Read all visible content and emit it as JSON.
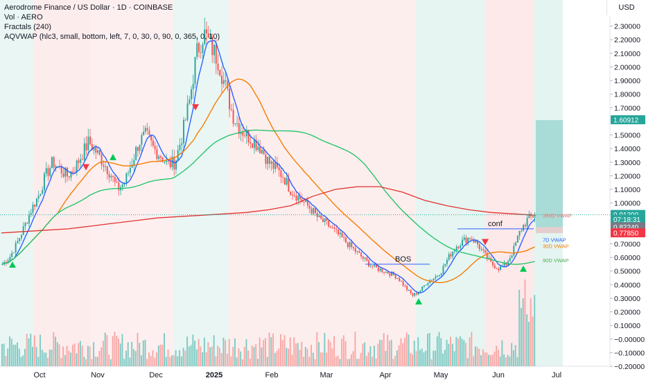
{
  "header": {
    "symbol_line": "Aerodrome Finance / US Dollar · 1D · COINBASE",
    "indicators": [
      "Vol · AERO",
      "Fractals (240)",
      "AQVWAP (hlc3, small, bottom, left, 7, 0, 30, 0, 90, 0, 365, 0, 10)"
    ],
    "currency": "USD"
  },
  "annotations": {
    "bos": "BOS",
    "conf": "conf"
  },
  "price_labels": [
    {
      "text": "1.60912",
      "bg": "#26a69a",
      "fg": "#ffffff",
      "value": 1.60912
    },
    {
      "text": "0.91300",
      "bg": "#26a69a",
      "fg": "#ffffff",
      "value": 0.913
    },
    {
      "text": "07:18:31",
      "bg": "#26a69a",
      "fg": "#ffffff",
      "value": 0.878
    },
    {
      "text": "0.82240",
      "bg": "#787b86",
      "fg": "#ffffff",
      "value": 0.8224
    },
    {
      "text": "0.77850",
      "bg": "#f23645",
      "fg": "#ffffff",
      "value": 0.7785
    }
  ],
  "vwap_labels": [
    {
      "text": "365D VWAP",
      "color": "#e57373",
      "value": 0.91
    },
    {
      "text": "7D VWAP",
      "color": "#2962ff",
      "value": 0.73
    },
    {
      "text": "30D VWAP",
      "color": "#f57c00",
      "value": 0.685
    },
    {
      "text": "90D VWAP",
      "color": "#4caf50",
      "value": 0.58
    }
  ],
  "chart_data": {
    "type": "candlestick",
    "title": "Aerodrome Finance / US Dollar · 1D · COINBASE",
    "ylim": [
      -0.2,
      2.4
    ],
    "y_ticks": [
      "2.30000",
      "2.20000",
      "2.10000",
      "2.00000",
      "1.90000",
      "1.80000",
      "1.70000",
      "1.50000",
      "1.40000",
      "1.30000",
      "1.20000",
      "1.10000",
      "1.00000",
      "0.70000",
      "0.60000",
      "0.50000",
      "0.40000",
      "0.30000",
      "0.20000",
      "0.10000",
      "−0.00000",
      "−0.10000",
      "−0.20000"
    ],
    "x_ticks": [
      "Oct",
      "Nov",
      "Dec",
      "2025",
      "Feb",
      "Mar",
      "Apr",
      "May",
      "Jun",
      "Jul"
    ],
    "close_path": [
      0.55,
      0.6,
      0.7,
      0.82,
      0.95,
      1.05,
      1.2,
      1.3,
      1.25,
      1.2,
      1.25,
      1.35,
      1.45,
      1.38,
      1.3,
      1.22,
      1.1,
      1.15,
      1.3,
      1.45,
      1.5,
      1.4,
      1.35,
      1.28,
      1.3,
      1.5,
      1.75,
      2.1,
      2.25,
      2.15,
      2.05,
      1.85,
      1.65,
      1.55,
      1.5,
      1.45,
      1.4,
      1.3,
      1.25,
      1.2,
      1.1,
      1.05,
      1.0,
      0.95,
      0.88,
      0.85,
      0.8,
      0.75,
      0.7,
      0.65,
      0.6,
      0.55,
      0.52,
      0.5,
      0.48,
      0.45,
      0.38,
      0.32,
      0.35,
      0.42,
      0.45,
      0.5,
      0.6,
      0.68,
      0.72,
      0.75,
      0.7,
      0.62,
      0.55,
      0.52,
      0.55,
      0.65,
      0.8,
      0.88,
      0.913
    ],
    "vwap": [
      {
        "name": "365D VWAP",
        "color": "#e0332f",
        "values": [
          0.78,
          0.79,
          0.8,
          0.81,
          0.83,
          0.85,
          0.87,
          0.89,
          0.9,
          0.91,
          0.92,
          0.93,
          0.95,
          0.98,
          1.05,
          1.1,
          1.12,
          1.12,
          1.08,
          1.02,
          0.98,
          0.95,
          0.93,
          0.92,
          0.91
        ]
      },
      {
        "name": "7D VWAP",
        "color": "#2962ff",
        "values": []
      },
      {
        "name": "30D VWAP",
        "color": "#f57c00",
        "values": []
      },
      {
        "name": "90D VWAP",
        "color": "#27c46b",
        "values": []
      }
    ],
    "last_price": 0.913,
    "target_price": 1.60912,
    "stop_price": 0.7785
  }
}
